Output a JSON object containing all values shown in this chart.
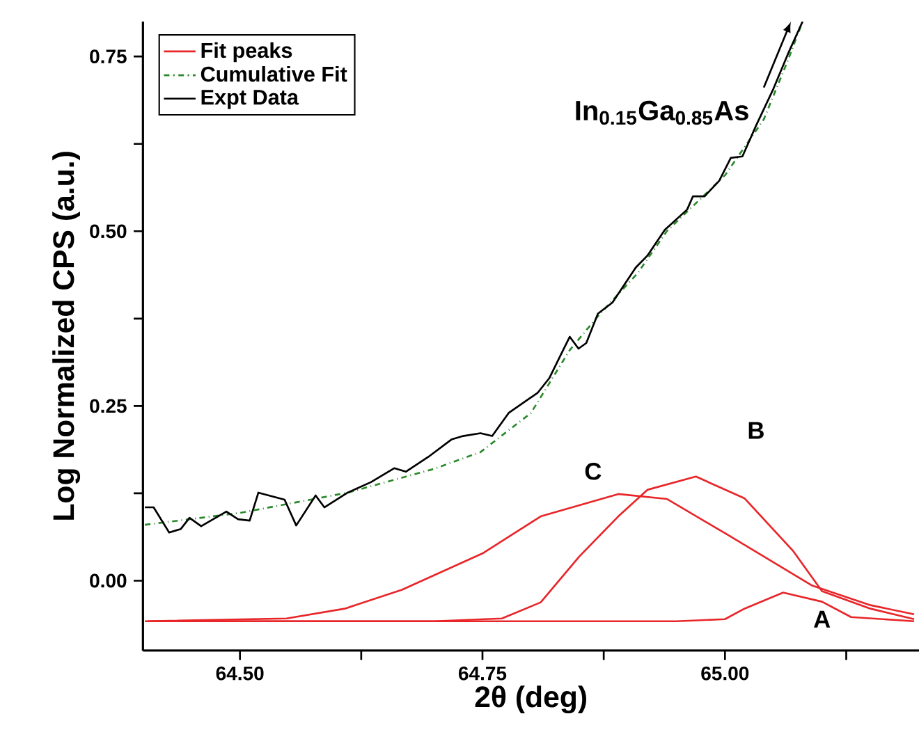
{
  "chart_data": {
    "type": "line",
    "xlabel": "2θ (deg)",
    "ylabel": "Log Normalized CPS (a.u.)",
    "xlim": [
      64.4,
      65.2
    ],
    "ylim": [
      -0.1,
      0.8
    ],
    "xticks": [
      {
        "value": 64.5,
        "label": "64.50"
      },
      {
        "value": 64.625,
        "label": null
      },
      {
        "value": 64.75,
        "label": "64.75"
      },
      {
        "value": 64.875,
        "label": null
      },
      {
        "value": 65.0,
        "label": "65.00"
      },
      {
        "value": 65.125,
        "label": null
      }
    ],
    "yticks": [
      {
        "value": 0,
        "label": "0.00"
      },
      {
        "value": 0.125,
        "label": null
      },
      0.25,
      {
        "value": 0.375,
        "label": null
      },
      {
        "value": 0.5,
        "label": "0.50"
      },
      {
        "value": 0.625,
        "label": null
      },
      0.75
    ],
    "legend": "top left",
    "grid": false,
    "marker": "none",
    "series": [
      {
        "name": "Fit peaks",
        "color": "#e8262a",
        "line_style": "solid",
        "x": [
          64.402,
          64.548,
          64.608,
          64.667,
          64.75,
          64.81,
          64.89,
          64.94,
          65.0,
          65.09,
          65.15,
          65.195
        ],
        "values": [
          -0.058,
          -0.054,
          -0.04,
          -0.013,
          0.039,
          0.092,
          0.124,
          0.117,
          0.068,
          -0.007,
          -0.035,
          -0.048
        ]
      },
      {
        "color": "#e8262a",
        "line_style": "solid",
        "x": [
          64.405,
          64.7,
          64.77,
          64.81,
          64.85,
          64.89,
          64.92,
          64.97,
          65.02,
          65.07,
          65.1,
          65.15,
          65.195
        ],
        "values": [
          -0.058,
          -0.058,
          -0.054,
          -0.031,
          0.035,
          0.092,
          0.13,
          0.149,
          0.118,
          0.043,
          -0.015,
          -0.04,
          -0.055
        ]
      },
      {
        "color": "#e8262a",
        "line_style": "solid",
        "x": [
          64.408,
          64.95,
          65.0,
          65.02,
          65.06,
          65.1,
          65.13,
          65.195
        ],
        "values": [
          -0.058,
          -0.058,
          -0.055,
          -0.04,
          -0.017,
          -0.03,
          -0.052,
          -0.058
        ]
      },
      {
        "name": "Cumulative Fit",
        "color": "#2a8a2a",
        "line_style": "dashdot",
        "x": [
          64.402,
          64.5,
          64.611,
          64.7,
          64.748,
          64.8,
          64.84,
          64.87,
          64.91,
          64.94,
          64.97,
          65.0,
          65.04,
          65.065,
          65.08
        ],
        "values": [
          0.08,
          0.097,
          0.126,
          0.16,
          0.184,
          0.24,
          0.33,
          0.38,
          0.44,
          0.5,
          0.54,
          0.58,
          0.66,
          0.745,
          0.8
        ]
      },
      {
        "name": "Expt Data",
        "color": "#000000",
        "line_style": "solid",
        "x": [
          64.402,
          64.411,
          64.427,
          64.439,
          64.448,
          64.46,
          64.486,
          64.498,
          64.51,
          64.519,
          64.546,
          64.558,
          64.578,
          64.587,
          64.611,
          64.635,
          64.659,
          64.671,
          64.694,
          64.718,
          64.73,
          64.748,
          64.76,
          64.777,
          64.807,
          64.819,
          64.831,
          64.84,
          64.849,
          64.857,
          64.869,
          64.884,
          64.908,
          64.92,
          64.938,
          64.961,
          64.967,
          64.979,
          64.994,
          65.006,
          65.018,
          65.032,
          65.05,
          65.065,
          65.08
        ],
        "values": [
          0.105,
          0.105,
          0.069,
          0.074,
          0.09,
          0.078,
          0.099,
          0.088,
          0.086,
          0.126,
          0.116,
          0.079,
          0.122,
          0.105,
          0.126,
          0.141,
          0.161,
          0.156,
          0.177,
          0.202,
          0.207,
          0.211,
          0.207,
          0.24,
          0.269,
          0.29,
          0.324,
          0.349,
          0.332,
          0.34,
          0.382,
          0.398,
          0.448,
          0.465,
          0.502,
          0.531,
          0.55,
          0.55,
          0.572,
          0.605,
          0.607,
          0.651,
          0.704,
          0.754,
          0.8
        ]
      }
    ],
    "annotations": [
      "In$_{0.15}$Ga$_{0.85}$As",
      "A",
      "B",
      "C"
    ]
  }
}
